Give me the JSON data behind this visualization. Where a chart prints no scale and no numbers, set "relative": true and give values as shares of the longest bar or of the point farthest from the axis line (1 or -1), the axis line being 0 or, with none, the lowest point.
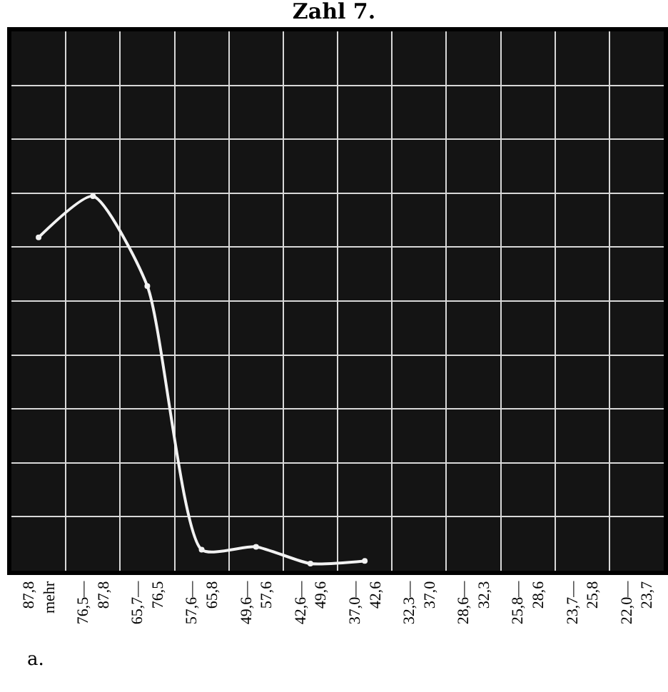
{
  "chart_data": {
    "type": "line",
    "title": "Zahl 7.",
    "relative": true,
    "grid": true,
    "legend": false,
    "marker": "circle",
    "line_style": "solid",
    "categories": [
      "87,8 mehr",
      "76,5—87,8",
      "65,7—76,5",
      "57,6—65,8",
      "49,6—57,6",
      "42,6—49,6",
      "37,0—42,6",
      "32,3—37,0",
      "28,6—32,3",
      "25,8—28,6",
      "23,7—25,8",
      "22,0—23,7"
    ],
    "series": [
      {
        "color": "#f2f2f2",
        "values": [
          0.89,
          1,
          0.76,
          0.056,
          0.064,
          0.019,
          0.026,
          null,
          null,
          null,
          null,
          null
        ]
      }
    ],
    "annotations": [
      "a."
    ]
  }
}
